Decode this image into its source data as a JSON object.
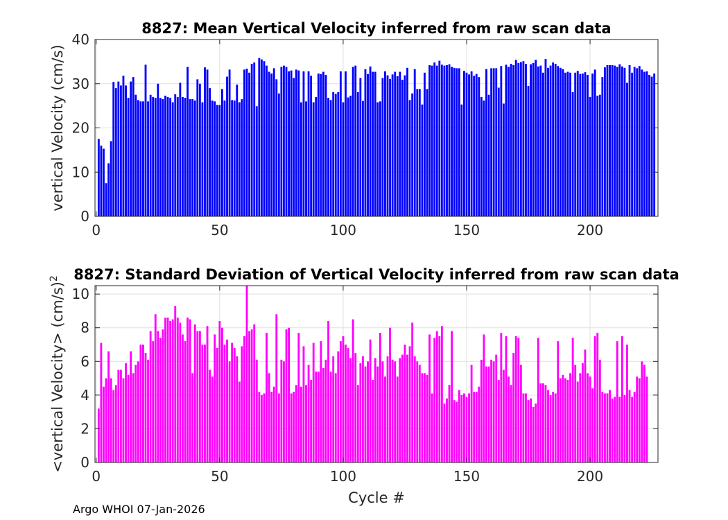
{
  "footer": "Argo WHOI 07-Jan-2026",
  "chart_data": [
    {
      "type": "bar",
      "title": "8827: Mean Vertical Velocity inferred from raw scan data",
      "xlabel": "",
      "ylabel": "vertical Velocity (cm/s)",
      "xlim": [
        -0.5,
        227.5
      ],
      "ylim": [
        0,
        40
      ],
      "xticks": [
        0,
        50,
        100,
        150,
        200
      ],
      "yticks": [
        0,
        10,
        20,
        30,
        40
      ],
      "grid": true,
      "color": "#0000ff",
      "x_start": 1,
      "values": [
        17.5,
        16,
        15.3,
        7.5,
        12,
        17,
        30.4,
        29,
        30.5,
        29.6,
        31.8,
        29.6,
        26.8,
        30.5,
        31.5,
        27.5,
        26.3,
        26,
        26,
        34.3,
        26,
        27.5,
        27,
        26.8,
        30,
        26.8,
        26.5,
        27.3,
        27,
        26.8,
        25.8,
        27.6,
        27,
        30.2,
        27,
        26.8,
        33.8,
        26.5,
        26.5,
        26.2,
        31,
        30,
        25.8,
        33.7,
        33.2,
        29,
        26.2,
        26,
        25.2,
        25.2,
        28.8,
        26.2,
        31.6,
        33.2,
        26.3,
        26.2,
        29.8,
        25.8,
        26.5,
        33.2,
        33.4,
        32.5,
        34.5,
        34.8,
        24.9,
        35.8,
        35.5,
        35.1,
        34.1,
        32.7,
        32.3,
        33.5,
        31,
        27.8,
        33.8,
        34.1,
        33.8,
        32.8,
        33,
        31.3,
        33.2,
        33,
        25.8,
        32.8,
        26,
        32.8,
        31.8,
        25.8,
        27,
        32.3,
        32.2,
        32.7,
        32,
        26.8,
        26.3,
        28.1,
        27.7,
        28.1,
        32.8,
        25.8,
        32.8,
        26.9,
        27.3,
        33.8,
        34.1,
        28.1,
        31.3,
        26.1,
        33.3,
        32.2,
        33.9,
        32.7,
        32.7,
        25.8,
        26,
        31.3,
        32.8,
        31.9,
        31.1,
        32.1,
        32.7,
        31.7,
        32.7,
        30.9,
        31.9,
        33.6,
        26.3,
        27.8,
        33.3,
        28.8,
        28.8,
        25.3,
        32.5,
        28.8,
        34.2,
        34.1,
        34.8,
        34.1,
        35.2,
        34.3,
        34.1,
        34.2,
        34.4,
        33.8,
        33.6,
        33.5,
        33.5,
        25.3,
        32.9,
        32.5,
        32.1,
        32.8,
        31.8,
        32.2,
        31.5,
        27,
        26.2,
        33.3,
        27.5,
        33.5,
        33.5,
        33.5,
        29.1,
        34,
        25.5,
        34.3,
        33.8,
        34.5,
        34.2,
        35.4,
        34.7,
        34.9,
        35.1,
        34.5,
        29.5,
        34.4,
        34.7,
        35.4,
        33.9,
        34.1,
        32.5,
        35.6,
        33.6,
        34.1,
        34.8,
        34.5,
        34,
        33.6,
        33.3,
        32.5,
        32.7,
        32.5,
        28.1,
        32.5,
        32.9,
        32.2,
        32.3,
        32.6,
        32,
        27,
        32.3,
        33.2,
        27.3,
        27.5,
        31.5,
        33.7,
        34.2,
        34.2,
        34.2,
        34.1,
        33.8,
        34.4,
        33.9,
        33.6,
        30.2,
        34.2,
        32.5,
        33.8,
        33.5,
        34,
        33.2,
        32.7,
        32.8,
        32,
        31.6,
        32.3
      ]
    },
    {
      "type": "bar",
      "title": "8827: Standard Deviation of Vertical Velocity inferred from raw scan data",
      "xlabel": "Cycle #",
      "ylabel": "<vertical Velocity> (cm/s)",
      "ylabel_superscript": "2",
      "xlim": [
        -0.5,
        227.5
      ],
      "ylim": [
        0,
        10.5
      ],
      "xticks": [
        0,
        50,
        100,
        150,
        200
      ],
      "yticks": [
        0,
        2,
        4,
        6,
        8,
        10
      ],
      "grid": true,
      "color": "#ff00ff",
      "x_start": 1,
      "values": [
        3.2,
        7.1,
        4.5,
        5,
        6.6,
        5,
        4.3,
        4.6,
        5.5,
        5.5,
        5,
        5.9,
        5.2,
        6.6,
        5.3,
        5.8,
        6,
        7,
        7,
        6.5,
        6.1,
        7.8,
        7.2,
        8.8,
        7.8,
        7.4,
        7.9,
        8.6,
        8.6,
        8.4,
        8.5,
        9.3,
        8.6,
        8.3,
        7.6,
        7.2,
        8.6,
        8.5,
        5.3,
        8.2,
        7.8,
        7.8,
        7,
        7,
        8.1,
        5.5,
        5.1,
        7.6,
        6.8,
        8.4,
        8,
        7,
        7.3,
        6,
        7.1,
        6.8,
        6.3,
        4.8,
        6.9,
        7.5,
        10.5,
        7.8,
        7.9,
        8.2,
        6.1,
        4.2,
        4,
        4.1,
        7.7,
        5.3,
        4.2,
        4.5,
        8.8,
        4.1,
        6.1,
        6,
        7.9,
        8,
        4.1,
        4.2,
        4.6,
        7.7,
        4.5,
        6.9,
        4.6,
        5.8,
        4.9,
        7.1,
        5.4,
        5.4,
        7.2,
        5.6,
        6.1,
        8.4,
        5.4,
        6.3,
        5.3,
        6.6,
        7.2,
        7.5,
        7,
        6.8,
        6.2,
        8.5,
        6.5,
        4.6,
        5.9,
        6.3,
        5.7,
        6,
        7.3,
        4.9,
        6.2,
        5.7,
        7.7,
        6,
        5.1,
        6.3,
        8,
        6.1,
        6,
        5.1,
        6.2,
        6.4,
        7,
        6.4,
        6.9,
        8.3,
        6.3,
        6,
        5.8,
        5.3,
        5.3,
        5.2,
        7.6,
        4.1,
        7.4,
        7.8,
        7.5,
        8.1,
        3.5,
        3.8,
        4.6,
        7.8,
        3.7,
        3.6,
        4.3,
        4,
        4.1,
        3.9,
        4.1,
        5.8,
        4.2,
        4.2,
        4.5,
        6.1,
        7.6,
        5.7,
        5.7,
        6.1,
        6,
        6.4,
        4.9,
        7.7,
        5.5,
        7.5,
        5.1,
        4.6,
        6.5,
        7.5,
        7.4,
        5.8,
        4.1,
        4.1,
        3.7,
        3.8,
        3.3,
        3.5,
        7.4,
        4.7,
        4.7,
        4.6,
        4.3,
        4,
        4.2,
        4.1,
        7.2,
        5,
        5.2,
        5,
        4.9,
        5.3,
        7.4,
        5.8,
        4.8,
        5.3,
        5.9,
        6.7,
        5.3,
        5.1,
        4.4,
        7.5,
        7.7,
        6.1,
        4.2,
        4.1,
        4.1,
        4.3,
        3.8,
        3.9,
        7.2,
        3.9,
        7.5,
        4,
        7,
        4.3,
        3.9,
        4.2,
        5.1,
        5,
        6,
        5.8,
        5.1
      ]
    }
  ]
}
